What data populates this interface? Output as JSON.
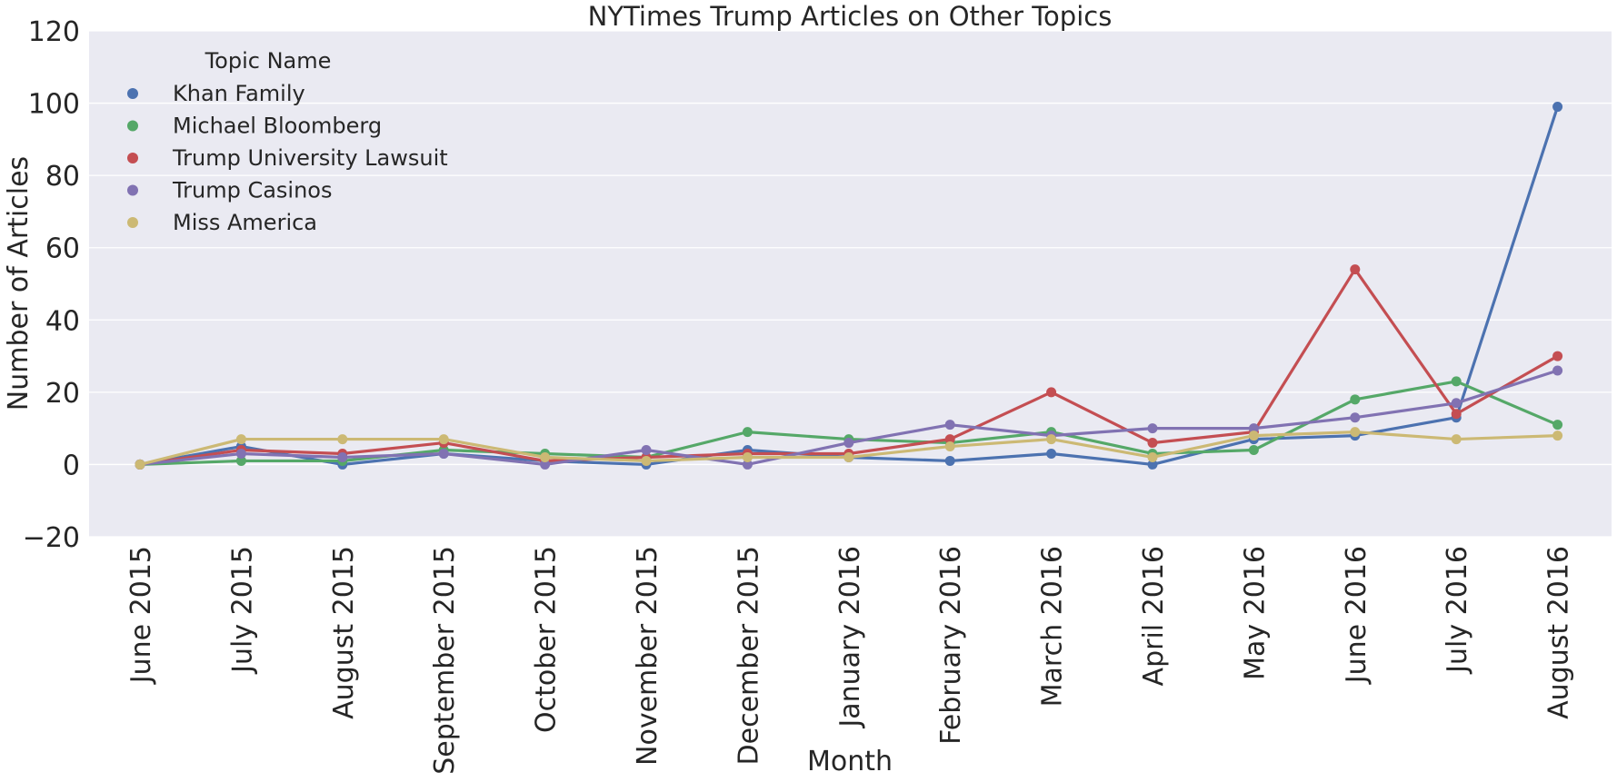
{
  "chart_data": {
    "type": "line",
    "title": "NYTimes Trump Articles on Other Topics",
    "xlabel": "Month",
    "ylabel": "Number of Articles",
    "ylim": [
      -20,
      120
    ],
    "yticks": [
      -20,
      0,
      20,
      40,
      60,
      80,
      100,
      120
    ],
    "ytick_labels": [
      "−20",
      "0",
      "20",
      "40",
      "60",
      "80",
      "100",
      "120"
    ],
    "grid": true,
    "legend_title": "Topic Name",
    "legend_position": "top-left",
    "categories": [
      "June 2015",
      "July 2015",
      "August 2015",
      "September 2015",
      "October 2015",
      "November 2015",
      "December 2015",
      "January 2016",
      "February 2016",
      "March 2016",
      "April 2016",
      "May 2016",
      "June 2016",
      "July 2016",
      "August 2016"
    ],
    "series": [
      {
        "name": "Khan Family",
        "color": "#4c72b0",
        "values": [
          0,
          5,
          0,
          3,
          1,
          0,
          4,
          2,
          1,
          3,
          0,
          7,
          8,
          13,
          99
        ]
      },
      {
        "name": "Michael Bloomberg",
        "color": "#55a868",
        "values": [
          0,
          1,
          1,
          4,
          3,
          2,
          9,
          7,
          6,
          9,
          3,
          4,
          18,
          23,
          11
        ]
      },
      {
        "name": "Trump University Lawsuit",
        "color": "#c44e52",
        "values": [
          0,
          4,
          3,
          6,
          1,
          2,
          3,
          3,
          7,
          20,
          6,
          9,
          54,
          14,
          30
        ]
      },
      {
        "name": "Trump Casinos",
        "color": "#8172b2",
        "values": [
          0,
          3,
          2,
          3,
          0,
          4,
          0,
          6,
          11,
          8,
          10,
          10,
          13,
          17,
          26
        ]
      },
      {
        "name": "Miss America",
        "color": "#ccb974",
        "values": [
          0,
          7,
          7,
          7,
          2,
          1,
          2,
          2,
          5,
          7,
          2,
          8,
          9,
          7,
          8
        ]
      }
    ]
  }
}
